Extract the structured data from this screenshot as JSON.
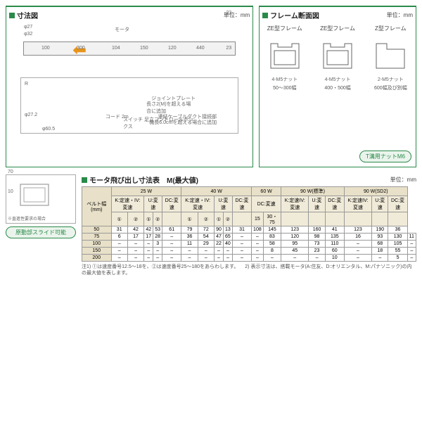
{
  "dim": {
    "title": "寸法図",
    "unit": "単位：mm",
    "motor": "モータ",
    "d1": "100",
    "d2": "300",
    "d3": "104",
    "d4": "150",
    "d5": "120",
    "d6": "440",
    "d7": "23",
    "d8": "23",
    "phi1": "φ27",
    "phi2": "φ32",
    "phi3": "φ27.2",
    "phi4": "φ60.5",
    "r": "R",
    "lbl1": "ジョイントプレート",
    "lbl2": "長さ2(M)を超える場合に追加",
    "lbl3": "スイッチ 足立コントロールボックス",
    "lbl4": "コード 2m",
    "lbl5": "連結ケーブルダクト接続部",
    "lbl6": "機長6.0cmを超える場合に追加"
  },
  "frame": {
    "title": "フレーム断面図",
    "unit": "単位：mm",
    "items": [
      {
        "name": "ZE型フレーム",
        "cap": "50～300幅",
        "nut": "4-M5ナット",
        "w": "41",
        "h": "34"
      },
      {
        "name": "ZE型フレーム",
        "cap": "400・500幅",
        "nut": "4-M5ナット",
        "w": "41",
        "h": "34"
      },
      {
        "name": "Z型フレーム",
        "cap": "600幅及び別幅",
        "nut": "2-M5ナット",
        "w": "41",
        "h": "34"
      }
    ],
    "badge": "T溝用ナットM6"
  },
  "side": {
    "d1": "70",
    "d2": "10",
    "lbl": "※直進性要求の場合",
    "badge": "原動部スライド可能"
  },
  "table": {
    "title": "モータ飛び出し寸法表　M(最大値)",
    "unit": "単位：mm",
    "hdrW": [
      "25 W",
      "40 W",
      "60 W",
      "90 W(標準)",
      "90 W(SD2)"
    ],
    "sub": [
      "K:定速・IV:変速",
      "U:変速",
      "DC:変速",
      "K:定速・IV:変速",
      "U:変速",
      "DC:変速",
      "DC:変速",
      "K:定速IV:変速",
      "U:変速",
      "DC:変速",
      "K:定速IV:変速",
      "U:変速",
      "DC:変速"
    ],
    "sub2": [
      "①",
      "②",
      "①",
      "②",
      "",
      "①",
      "②",
      "①",
      "②",
      "",
      "15",
      "30・75",
      "",
      "",
      "",
      "",
      "",
      ""
    ],
    "belt": "ベルト幅(mm)",
    "rows": [
      [
        "50",
        "31",
        "42",
        "42",
        "53",
        "61",
        "79",
        "72",
        "90",
        "13",
        "31",
        "108",
        "145",
        "123",
        "160",
        "41",
        "123",
        "190",
        "36"
      ],
      [
        "75",
        "6",
        "17",
        "17",
        "28",
        "–",
        "36",
        "54",
        "47",
        "65",
        "–",
        "–",
        "83",
        "120",
        "98",
        "135",
        "16",
        "93",
        "130",
        "11"
      ],
      [
        "100",
        "–",
        "–",
        "–",
        "3",
        "–",
        "11",
        "29",
        "22",
        "40",
        "–",
        "–",
        "58",
        "95",
        "73",
        "110",
        "–",
        "68",
        "105",
        "–"
      ],
      [
        "150",
        "–",
        "–",
        "–",
        "–",
        "–",
        "–",
        "–",
        "–",
        "–",
        "–",
        "–",
        "8",
        "45",
        "23",
        "60",
        "–",
        "18",
        "55",
        "–"
      ],
      [
        "200",
        "–",
        "–",
        "–",
        "–",
        "–",
        "–",
        "–",
        "–",
        "–",
        "–",
        "–",
        "–",
        "–",
        "–",
        "10",
        "–",
        "–",
        "5",
        "–"
      ]
    ],
    "note": "注1) ①は速度番号12.5～18を、②は速度番号25～180をあらわします。\n　2) 表示寸法は、搭載モータ(A:住友、D:オリエンタル、M:パナソニック)の内の最大値を表します。"
  }
}
